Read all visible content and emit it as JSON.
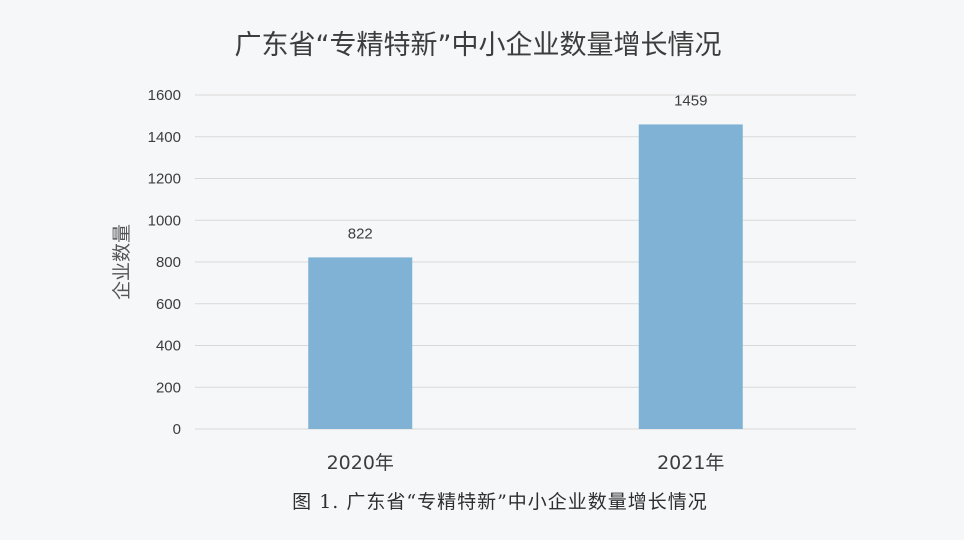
{
  "chart_data": {
    "type": "bar",
    "title": "广东省“专精特新”中小企业数量增长情况",
    "ylabel": "企业数量",
    "xlabel": "",
    "categories": [
      "2020年",
      "2021年"
    ],
    "values": [
      822,
      1459
    ],
    "data_labels": [
      "822",
      "1459"
    ],
    "ylim": [
      0,
      1600
    ],
    "yticks": [
      "0",
      "200",
      "400",
      "600",
      "800",
      "1000",
      "1200",
      "1400",
      "1600"
    ],
    "grid": true,
    "legend": "none",
    "bar_color": "#7fb2d4",
    "caption": "图 1. 广东省“专精特新”中小企业数量增长情况"
  }
}
